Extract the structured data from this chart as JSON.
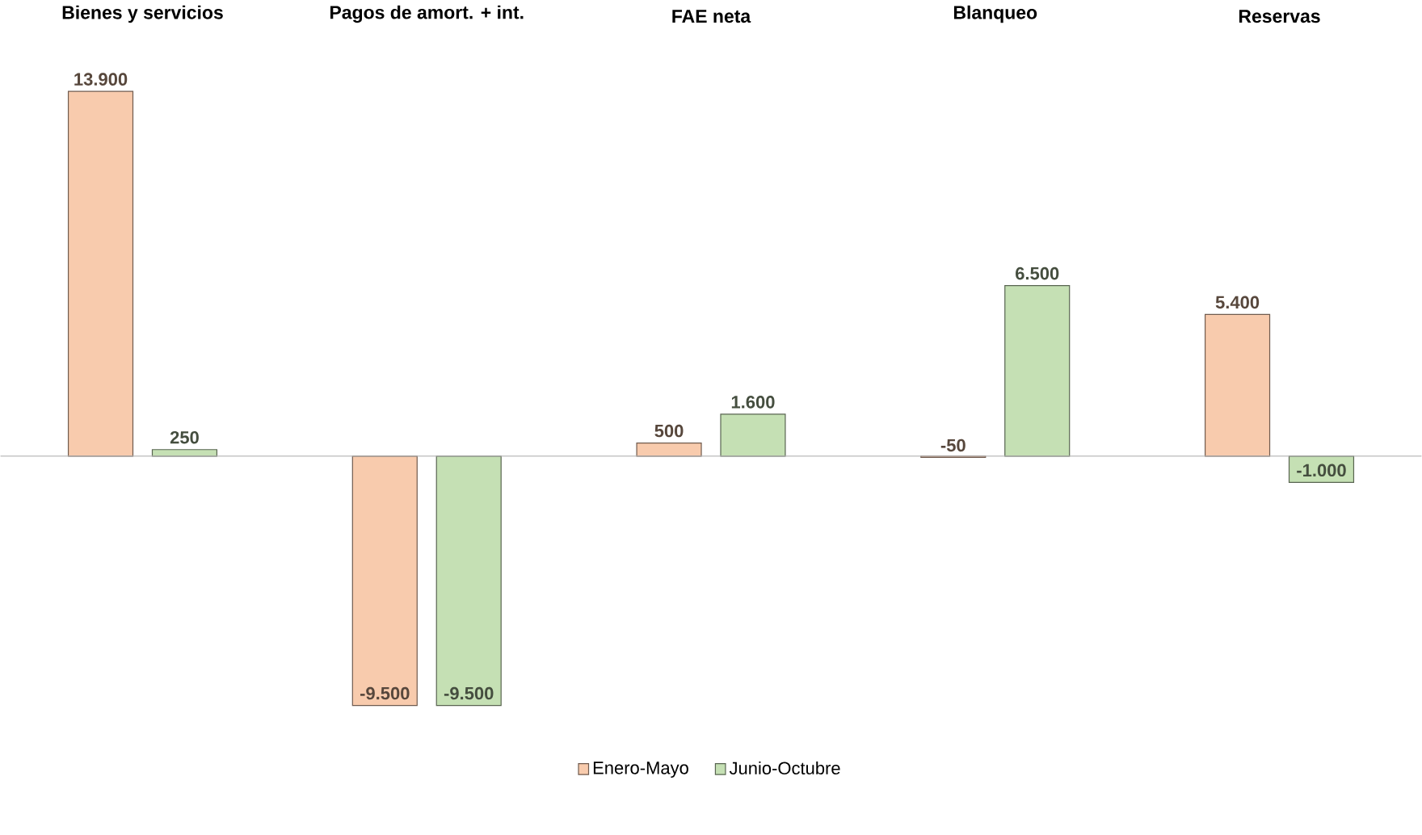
{
  "chart_data": {
    "type": "bar",
    "categories": [
      "Bienes y servicios",
      "Pagos de amort. + int.",
      "FAE neta",
      "Blanqueo",
      "Reservas"
    ],
    "series": [
      {
        "name": "Enero-Mayo",
        "color": "#f8cbad",
        "values": [
          13900,
          -9500,
          500,
          -50,
          5400
        ],
        "value_labels": [
          "13.900",
          "-9.500",
          "500",
          "-50",
          "5.400"
        ]
      },
      {
        "name": "Junio-Octubre",
        "color": "#c5e0b4",
        "values": [
          250,
          -9500,
          1600,
          6500,
          -1000
        ],
        "value_labels": [
          "250",
          "-9.500",
          "1.600",
          "6.500",
          "-1.000"
        ]
      }
    ],
    "legend": "bottom"
  }
}
